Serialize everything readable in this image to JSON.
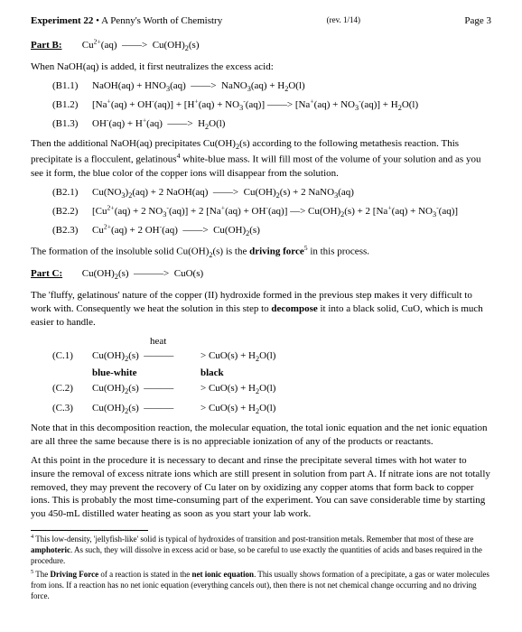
{
  "header": {
    "title_bold": "Experiment 22",
    "title_rest": " • A Penny's Worth of Chemistry",
    "rev": "(rev. 1/14)",
    "page": "Page 3"
  },
  "partB": {
    "label": "Part B:",
    "equation_html": "Cu<sup>2+</sup>(aq) &nbsp;——&gt;&nbsp; Cu(OH)<sub>2</sub>(s)",
    "intro": "When NaOH(aq) is added, it first neutralizes the excess acid:",
    "eqs1": [
      {
        "tag": "(B1.1)",
        "html": "NaOH(aq) + HNO<sub>3</sub>(aq) &nbsp;——&gt;&nbsp; NaNO<sub>3</sub>(aq) + H<sub>2</sub>O(l)"
      },
      {
        "tag": "(B1.2)",
        "html": "[Na<sup>+</sup>(aq) + OH<sup>-</sup>(aq)] + [H<sup>+</sup>(aq) + NO<sub>3</sub><sup>-</sup>(aq)] ——&gt; [Na<sup>+</sup>(aq) + NO<sub>3</sub><sup>-</sup>(aq)] + H<sub>2</sub>O(l)"
      },
      {
        "tag": "(B1.3)",
        "html": "OH<sup>-</sup>(aq) + H<sup>+</sup>(aq) &nbsp;——&gt;&nbsp; H<sub>2</sub>O(l)"
      }
    ],
    "para2_html": "Then the additional NaOH(aq) precipitates Cu(OH)<sub>2</sub>(s) according to the following metathesis reaction. This precipitate is a flocculent, gelatinous<sup>4</sup> white-blue mass. It will fill most of the volume of your solution and as you see it form, the blue color of the copper ions will disappear from the solution.",
    "eqs2": [
      {
        "tag": "(B2.1)",
        "html": "Cu(NO<sub>3</sub>)<sub>2</sub>(aq) + 2 NaOH(aq) &nbsp;——&gt;&nbsp; Cu(OH)<sub>2</sub>(s) + 2 NaNO<sub>3</sub>(aq)"
      },
      {
        "tag": "(B2.2)",
        "html": "[Cu<sup>2+</sup>(aq) + 2 NO<sub>3</sub><sup>-</sup>(aq)] + 2 [Na<sup>+</sup>(aq) + OH<sup>-</sup>(aq)] —&gt; Cu(OH)<sub>2</sub>(s) + 2 [Na<sup>+</sup>(aq) + NO<sub>3</sub><sup>-</sup>(aq)]"
      },
      {
        "tag": "(B2.3)",
        "html": "Cu<sup>2+</sup>(aq) + 2 OH<sup>-</sup>(aq) &nbsp;——&gt;&nbsp; Cu(OH)<sub>2</sub>(s)"
      }
    ],
    "para3_html": "The formation of the insoluble solid Cu(OH)<sub>2</sub>(s) is the <b>driving force</b><sup>5</sup> in this process."
  },
  "partC": {
    "label": "Part C:",
    "equation_html": "Cu(OH)<sub>2</sub>(s) &nbsp;———&gt;&nbsp; CuO(s)",
    "para1_html": "The 'fluffy, gelatinous' nature of the copper (II) hydroxide formed in the previous step makes it very difficult to work with. Consequently we heat the solution in this step to <b>decompose</b> it into a black solid, CuO, which is much easier to handle.",
    "heat_label": "heat",
    "rows": [
      {
        "tag": "(C.1)",
        "left_html": "Cu(OH)<sub>2</sub>(s)&nbsp;&nbsp;———",
        "right_html": "&gt; CuO(s) + H<sub>2</sub>O(l)",
        "note_left": "blue-white",
        "note_right": "black"
      },
      {
        "tag": "(C.2)",
        "left_html": "Cu(OH)<sub>2</sub>(s)&nbsp;&nbsp;———",
        "right_html": "&gt; CuO(s) + H<sub>2</sub>O(l)"
      },
      {
        "tag": "(C.3)",
        "left_html": "Cu(OH)<sub>2</sub>(s)&nbsp;&nbsp;———",
        "right_html": "&gt; CuO(s) + H<sub>2</sub>O(l)"
      }
    ],
    "para2": "Note that in this decomposition reaction, the molecular equation, the total ionic equation and the net ionic equation are all three the same because there is is no appreciable ionization of any of the products or reactants.",
    "para3": "At this point in the procedure it is necessary to decant and rinse the precipitate several times with hot water to insure the removal of excess nitrate ions which are still present in solution from part A. If nitrate ions are not totally removed, they may prevent the recovery of Cu later on by oxidizing any copper atoms that form back to copper ions. This is probably the most time-consuming part of the experiment. You can save considerable time by starting you 450-mL distilled water heating as soon as you start your lab work."
  },
  "footnotes": [
    {
      "html": "<sup>4</sup> This low-density, 'jellyfish-like' solid is typical of hydroxides of transition and post-transition metals. Remember that most of these are <b>amphoteric</b>. As such, they will dissolve in excess acid or base, so be careful to use exactly the quantities of acids and bases required in the procedure."
    },
    {
      "html": "<sup>5</sup> The <b>Driving Force</b> of a reaction is stated in the <b>net ionic equation</b>. This usually shows formation of a precipitate, a gas or water molecules from ions. If a reaction has no net ionic equation (everything cancels out), then there is not net chemical change occurring and no driving force."
    }
  ]
}
